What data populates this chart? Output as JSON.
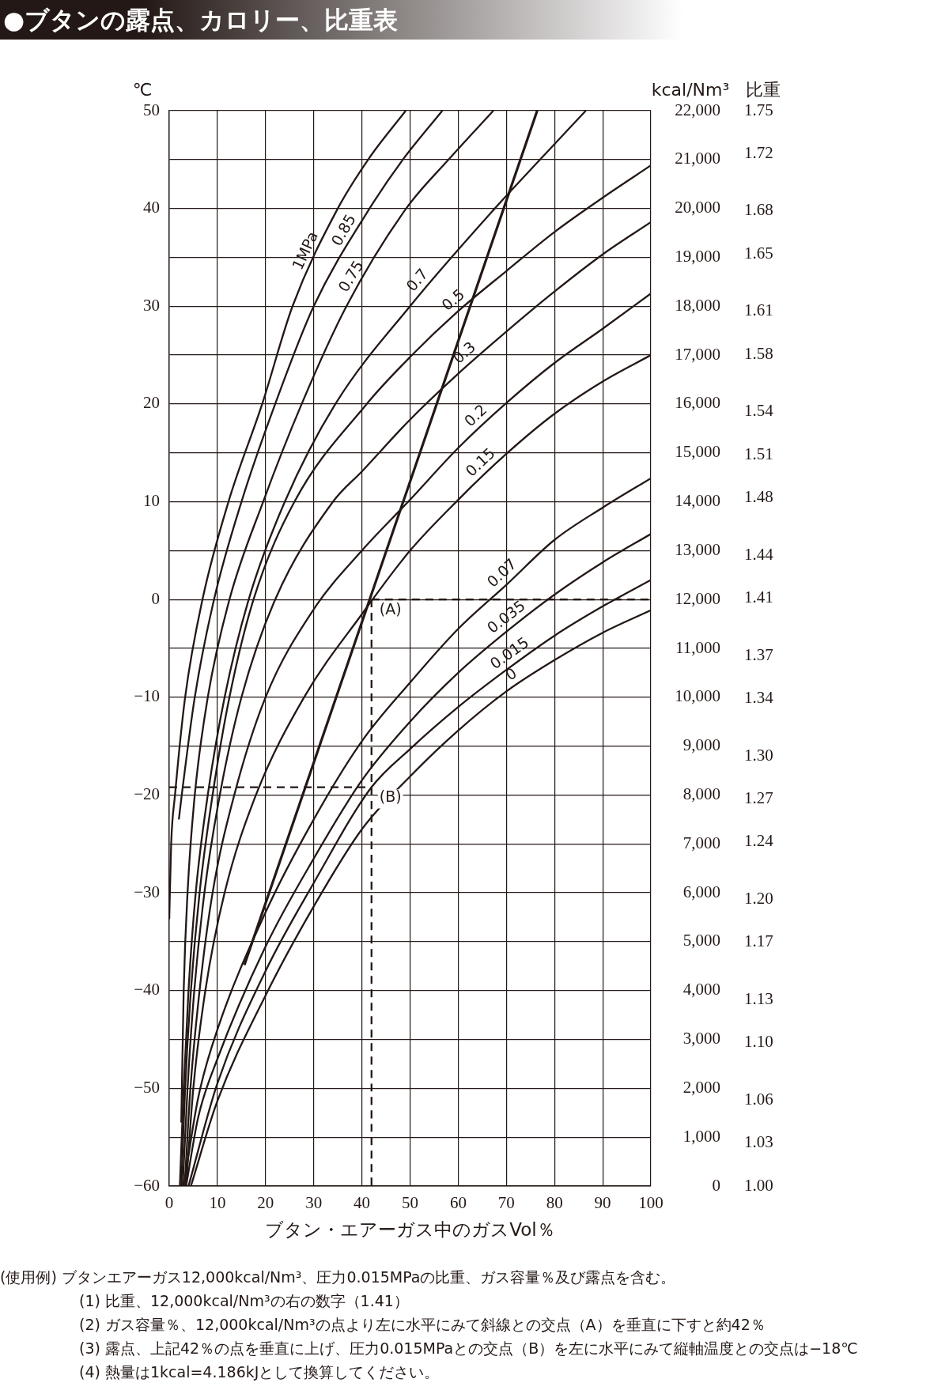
{
  "chart_data": {
    "type": "line",
    "title": "●ブタンの露点、カロリー、比重表",
    "xlabel": "ブタン・エアーガス中のガスVol％",
    "ylabel": "℃",
    "y2label": "kcal/Nm³",
    "y3label": "比重",
    "xlim": [
      0,
      100
    ],
    "xticks": [
      0,
      10,
      20,
      30,
      40,
      50,
      60,
      70,
      80,
      90,
      100
    ],
    "ylim": [
      -60,
      50
    ],
    "yticks": [
      -60,
      {
        "value": -55,
        "label": null
      },
      -50,
      {
        "value": -45,
        "label": null
      },
      -40,
      {
        "value": -35,
        "label": null
      },
      -30,
      {
        "value": -25,
        "label": null
      },
      -20,
      {
        "value": -15,
        "label": null
      },
      -10,
      {
        "value": -5,
        "label": null
      },
      0,
      {
        "value": 5,
        "label": null
      },
      10,
      {
        "value": 15,
        "label": null
      },
      20,
      {
        "value": 25,
        "label": null
      },
      30,
      {
        "value": 35,
        "label": null
      },
      40,
      {
        "value": 45,
        "label": null
      },
      50
    ],
    "y2lim": [
      0,
      22000
    ],
    "y2ticks": [
      0,
      {
        "value": 1000,
        "label": "1,000"
      },
      {
        "value": 2000,
        "label": "2,000"
      },
      {
        "value": 3000,
        "label": "3,000"
      },
      {
        "value": 4000,
        "label": "4,000"
      },
      {
        "value": 5000,
        "label": "5,000"
      },
      {
        "value": 6000,
        "label": "6,000"
      },
      {
        "value": 7000,
        "label": "7,000"
      },
      {
        "value": 8000,
        "label": "8,000"
      },
      {
        "value": 9000,
        "label": "9,000"
      },
      {
        "value": 10000,
        "label": "10,000"
      },
      {
        "value": 11000,
        "label": "11,000"
      },
      {
        "value": 12000,
        "label": "12,000"
      },
      {
        "value": 13000,
        "label": "13,000"
      },
      {
        "value": 14000,
        "label": "14,000"
      },
      {
        "value": 15000,
        "label": "15,000"
      },
      {
        "value": 16000,
        "label": "16,000"
      },
      {
        "value": 17000,
        "label": "17,000"
      },
      {
        "value": 18000,
        "label": "18,000"
      },
      {
        "value": 19000,
        "label": "19,000"
      },
      {
        "value": 20000,
        "label": "20,000"
      },
      {
        "value": 21000,
        "label": "21,000"
      },
      {
        "value": 22000,
        "label": "22,000"
      }
    ],
    "y3lim": [
      1.0,
      1.75
    ],
    "y3ticks": [
      {
        "value": 1,
        "label": "1.00"
      },
      1.03,
      1.06,
      {
        "value": 1.1,
        "label": "1.10"
      },
      1.13,
      1.17,
      {
        "value": 1.2,
        "label": "1.20"
      },
      1.24,
      1.27,
      {
        "value": 1.3,
        "label": "1.30"
      },
      1.34,
      1.37,
      1.41,
      1.44,
      1.48,
      1.51,
      1.54,
      1.58,
      1.61,
      1.65,
      1.68,
      1.72,
      1.75
    ],
    "grid": true,
    "legend": false,
    "marker": "none",
    "series": [
      {
        "name": "1MPa",
        "color": "#231815",
        "x": [
          0,
          0.4,
          1.2,
          3.3,
          6.9,
          12.3,
          19.3,
          25.6,
          35,
          41.3,
          49.1
        ],
        "values": [
          -32.7,
          -25,
          -20,
          -10,
          0,
          10,
          20,
          30,
          40,
          45,
          50
        ]
      },
      {
        "name": "0.85",
        "color": "#231815",
        "x": [
          2,
          2.6,
          5.3,
          9.3,
          15,
          22,
          30,
          41.6,
          48.5,
          56.7
        ],
        "values": [
          -22.5,
          -20,
          -10,
          0,
          10,
          20,
          30,
          40,
          45,
          50
        ]
      },
      {
        "name": "0.75",
        "color": "#231815",
        "x": [
          2.5,
          3,
          3.8,
          5.3,
          8,
          12.5,
          19.5,
          27.5,
          36.8,
          49.2,
          58,
          67.3
        ],
        "values": [
          -53.5,
          -40,
          -30,
          -20,
          -10,
          0,
          10,
          20,
          30,
          40,
          45,
          50
        ]
      },
      {
        "name": "0.7",
        "color": "#231815",
        "x": [
          2.2,
          3,
          4,
          5.5,
          8,
          11.5,
          16.5,
          24,
          34.5,
          50,
          67.6,
          77,
          86.5
        ],
        "values": [
          -60,
          -50,
          -40,
          -30,
          -20,
          -10,
          0,
          10,
          20,
          30,
          40,
          45,
          50
        ]
      },
      {
        "name": "0.5",
        "color": "#231815",
        "x": [
          2.5,
          3.3,
          4.5,
          6.3,
          9,
          12.5,
          17.5,
          26,
          41,
          50,
          60,
          70,
          80,
          90,
          100
        ],
        "values": [
          -60,
          -50,
          -40,
          -30,
          -20,
          -10,
          0,
          10,
          20,
          24.8,
          29.5,
          33.6,
          37.6,
          41.1,
          44.4
        ]
      },
      {
        "name": "0.3",
        "color": "#231815",
        "x": [
          2.8,
          3.8,
          5.2,
          7.3,
          10.5,
          15,
          22,
          34,
          40,
          50,
          60,
          70,
          80,
          90,
          100
        ],
        "values": [
          -60,
          -50,
          -40,
          -30,
          -20,
          -10,
          0,
          10,
          13.1,
          18.4,
          23.1,
          27.4,
          31.5,
          35.3,
          38.6
        ]
      },
      {
        "name": "0.2",
        "color": "#231815",
        "x": [
          3.2,
          4.4,
          6.3,
          9,
          13.5,
          20,
          30,
          40,
          50,
          60,
          70,
          80,
          90,
          100
        ],
        "values": [
          -60,
          -50,
          -40,
          -30,
          -20,
          -10,
          -1,
          5,
          10.2,
          15.5,
          20.1,
          24.2,
          27.7,
          31.3
        ]
      },
      {
        "name": "0.15",
        "color": "#231815",
        "x": [
          3.5,
          5,
          7.5,
          11.5,
          18,
          28,
          40,
          50,
          60,
          70,
          80,
          90,
          100
        ],
        "values": [
          -60,
          -50,
          -40,
          -30,
          -20,
          -10,
          -1.5,
          5,
          10.2,
          14.9,
          19,
          22.3,
          25
        ]
      },
      {
        "name": "0.07",
        "color": "#231815",
        "x": [
          3,
          6,
          10,
          20,
          30,
          40,
          50,
          60,
          70,
          80,
          90,
          100
        ],
        "values": [
          -60,
          -51,
          -44,
          -32,
          -22.5,
          -14.5,
          -8.5,
          -3,
          1.5,
          6.1,
          9.4,
          12.4
        ]
      },
      {
        "name": "0.035",
        "color": "#231815",
        "x": [
          3.5,
          6,
          10,
          20,
          30,
          40,
          50,
          60,
          70,
          80,
          90,
          100
        ],
        "values": [
          -60,
          -53,
          -47,
          -35.5,
          -26.5,
          -18.5,
          -12.5,
          -7.5,
          -3.3,
          0.5,
          3.8,
          6.7
        ]
      },
      {
        "name": "0.015",
        "color": "#231815",
        "x": [
          4,
          10,
          20,
          30,
          42,
          50,
          60,
          70,
          80,
          90,
          100
        ],
        "values": [
          -60,
          -49.5,
          -38,
          -29,
          -19.2,
          -15.3,
          -11,
          -7.2,
          -3.7,
          -0.7,
          2
        ]
      },
      {
        "name": "0",
        "color": "#231815",
        "x": [
          4.5,
          10,
          20,
          30,
          40,
          50,
          60,
          70,
          80,
          90,
          100
        ],
        "values": [
          -60,
          -51.3,
          -40.5,
          -31.4,
          -23.5,
          -18.1,
          -13.4,
          -9.4,
          -6.2,
          -3.4,
          -1.1
        ]
      },
      {
        "color": "#231815",
        "x": [
          15.6,
          76.4
        ],
        "values": [
          -37.4,
          50
        ]
      },
      {
        "color": "#231815",
        "line_style": "dashed",
        "x": [
          42,
          100
        ],
        "values": [
          0,
          0
        ]
      },
      {
        "color": "#231815",
        "line_style": "dashed",
        "x": [
          42,
          42
        ],
        "values": [
          0,
          -60
        ]
      },
      {
        "color": "#231815",
        "line_style": "dashed",
        "x": [
          0,
          42
        ],
        "values": [
          -19.2,
          -19.2
        ]
      }
    ],
    "annotations": [
      {
        "text": "(A)",
        "x": 42,
        "y": 0
      },
      {
        "text": "(B)",
        "x": 42,
        "y": -19.2
      },
      "(使用例) ブタンエアーガス12,000kcal/Nm³、圧力0.015MPaの比重、ガス容量％及び露点を含む。",
      "(1) 比重、12,000kcal/Nm³の右の数字（1.41）",
      "(2) ガス容量％、12,000kcal/Nm³の点より左に水平にみて斜線との交点（A）を垂直に下すと約42％",
      "(3) 露点、上記42％の点を垂直に上げ、圧力0.015MPaとの交点（B）を左に水平にみて縦軸温度との交点は−18℃",
      "(4) 熱量は1kcal=4.186kJとして換算してください。"
    ]
  }
}
